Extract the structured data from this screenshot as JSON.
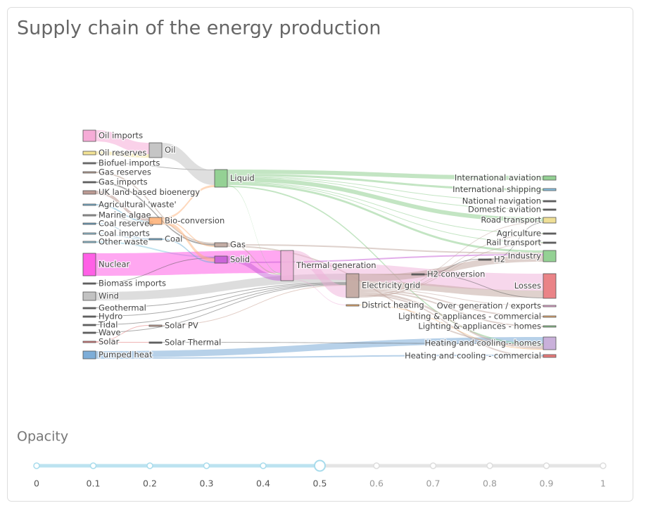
{
  "chart_data": {
    "type": "sankey",
    "title": "Supply chain of the energy production",
    "nodes": [
      {
        "label": "Oil imports",
        "color": "#f5a3d3"
      },
      {
        "label": "Oil reserves",
        "color": "#f2e08a"
      },
      {
        "label": "Biofuel imports",
        "color": "#666666"
      },
      {
        "label": "Gas reserves",
        "color": "#b5998a"
      },
      {
        "label": "Gas imports",
        "color": "#555555"
      },
      {
        "label": "UK land based bioenergy",
        "color": "#b58f87"
      },
      {
        "label": "Agricultural 'waste'",
        "color": "#6cb4d8"
      },
      {
        "label": "Marine algae",
        "color": "#999999"
      },
      {
        "label": "Coal reserves",
        "color": "#5e9fc4"
      },
      {
        "label": "Coal imports",
        "color": "#8fc4de"
      },
      {
        "label": "Other waste",
        "color": "#83c7df"
      },
      {
        "label": "Nuclear",
        "color": "#ff4fe3"
      },
      {
        "label": "Biomass imports",
        "color": "#555555"
      },
      {
        "label": "Wind",
        "color": "#bbbbbb"
      },
      {
        "label": "Geothermal",
        "color": "#555555"
      },
      {
        "label": "Hydro",
        "color": "#555555"
      },
      {
        "label": "Tidal",
        "color": "#555555"
      },
      {
        "label": "Wave",
        "color": "#555555"
      },
      {
        "label": "Solar",
        "color": "#e06b6b"
      },
      {
        "label": "Pumped heat",
        "color": "#6fa4d4"
      },
      {
        "label": "Oil",
        "color": "#bfbfbf"
      },
      {
        "label": "Bio-conversion",
        "color": "#fdb27a"
      },
      {
        "label": "Coal",
        "color": "#6aaed6"
      },
      {
        "label": "Solar PV",
        "color": "#c49a8a"
      },
      {
        "label": "Solar Thermal",
        "color": "#555555"
      },
      {
        "label": "Liquid",
        "color": "#88cc88"
      },
      {
        "label": "Gas",
        "color": "#bda39a"
      },
      {
        "label": "Solid",
        "color": "#c55ed6"
      },
      {
        "label": "Thermal generation",
        "color": "#f0b0da"
      },
      {
        "label": "Electricity grid",
        "color": "#c0a49c"
      },
      {
        "label": "District heating",
        "color": "#f6a95c"
      },
      {
        "label": "H2 conversion",
        "color": "#555555"
      },
      {
        "label": "International aviation",
        "color": "#88cc88"
      },
      {
        "label": "International shipping",
        "color": "#7bb9dd"
      },
      {
        "label": "National navigation",
        "color": "#555555"
      },
      {
        "label": "Domestic aviation",
        "color": "#555555"
      },
      {
        "label": "Road transport",
        "color": "#eddc8b"
      },
      {
        "label": "Agriculture",
        "color": "#555555"
      },
      {
        "label": "Rail transport",
        "color": "#555555"
      },
      {
        "label": "H2",
        "color": "#555555"
      },
      {
        "label": "Industry",
        "color": "#88cc88"
      },
      {
        "label": "Losses",
        "color": "#e8767a"
      },
      {
        "label": "Over generation / exports",
        "color": "#f4a0d6"
      },
      {
        "label": "Lighting & appliances - commercial",
        "color": "#f3a862"
      },
      {
        "label": "Lighting & appliances - homes",
        "color": "#7fc47f"
      },
      {
        "label": "Heating and cooling - homes",
        "color": "#c3a7d6"
      },
      {
        "label": "Heating and cooling - commercial",
        "color": "#e66b6b"
      }
    ],
    "links": [
      {
        "source": 0,
        "target": 20,
        "value": 16
      },
      {
        "source": 1,
        "target": 20,
        "value": 5
      },
      {
        "source": 2,
        "target": 25,
        "value": 1
      },
      {
        "source": 3,
        "target": 26,
        "value": 2
      },
      {
        "source": 4,
        "target": 26,
        "value": 2
      },
      {
        "source": 5,
        "target": 21,
        "value": 5
      },
      {
        "source": 6,
        "target": 21,
        "value": 2
      },
      {
        "source": 7,
        "target": 21,
        "value": 1
      },
      {
        "source": 8,
        "target": 22,
        "value": 1
      },
      {
        "source": 9,
        "target": 22,
        "value": 1
      },
      {
        "source": 10,
        "target": 27,
        "value": 2
      },
      {
        "source": 11,
        "target": 28,
        "value": 32
      },
      {
        "source": 12,
        "target": 27,
        "value": 1
      },
      {
        "source": 13,
        "target": 29,
        "value": 12
      },
      {
        "source": 14,
        "target": 29,
        "value": 1
      },
      {
        "source": 15,
        "target": 29,
        "value": 1
      },
      {
        "source": 16,
        "target": 29,
        "value": 1
      },
      {
        "source": 17,
        "target": 29,
        "value": 1
      },
      {
        "source": 18,
        "target": 23,
        "value": 1
      },
      {
        "source": 18,
        "target": 24,
        "value": 1
      },
      {
        "source": 19,
        "target": 45,
        "value": 9
      },
      {
        "source": 19,
        "target": 46,
        "value": 2
      },
      {
        "source": 20,
        "target": 25,
        "value": 21
      },
      {
        "source": 21,
        "target": 25,
        "value": 3
      },
      {
        "source": 21,
        "target": 26,
        "value": 2
      },
      {
        "source": 21,
        "target": 27,
        "value": 5
      },
      {
        "source": 22,
        "target": 27,
        "value": 2
      },
      {
        "source": 23,
        "target": 29,
        "value": 1
      },
      {
        "source": 24,
        "target": 45,
        "value": 1
      },
      {
        "source": 25,
        "target": 32,
        "value": 6
      },
      {
        "source": 25,
        "target": 33,
        "value": 3
      },
      {
        "source": 25,
        "target": 34,
        "value": 1
      },
      {
        "source": 25,
        "target": 35,
        "value": 1
      },
      {
        "source": 25,
        "target": 36,
        "value": 6
      },
      {
        "source": 25,
        "target": 37,
        "value": 1
      },
      {
        "source": 25,
        "target": 38,
        "value": 1
      },
      {
        "source": 25,
        "target": 40,
        "value": 3
      },
      {
        "source": 25,
        "target": 28,
        "value": 1
      },
      {
        "source": 25,
        "target": 45,
        "value": 2
      },
      {
        "source": 26,
        "target": 28,
        "value": 2
      },
      {
        "source": 26,
        "target": 40,
        "value": 2
      },
      {
        "source": 26,
        "target": 45,
        "value": 2
      },
      {
        "source": 27,
        "target": 28,
        "value": 8
      },
      {
        "source": 27,
        "target": 40,
        "value": 2
      },
      {
        "source": 28,
        "target": 29,
        "value": 17
      },
      {
        "source": 28,
        "target": 41,
        "value": 24
      },
      {
        "source": 28,
        "target": 30,
        "value": 1
      },
      {
        "source": 29,
        "target": 31,
        "value": 2
      },
      {
        "source": 29,
        "target": 40,
        "value": 9
      },
      {
        "source": 29,
        "target": 41,
        "value": 10
      },
      {
        "source": 29,
        "target": 42,
        "value": 1
      },
      {
        "source": 29,
        "target": 43,
        "value": 2
      },
      {
        "source": 29,
        "target": 44,
        "value": 2
      },
      {
        "source": 29,
        "target": 45,
        "value": 3
      },
      {
        "source": 29,
        "target": 46,
        "value": 2
      },
      {
        "source": 29,
        "target": 36,
        "value": 1
      },
      {
        "source": 29,
        "target": 38,
        "value": 1
      },
      {
        "source": 29,
        "target": 37,
        "value": 1
      },
      {
        "source": 31,
        "target": 39,
        "value": 1
      },
      {
        "source": 31,
        "target": 41,
        "value": 1
      },
      {
        "source": 39,
        "target": 36,
        "value": 1
      },
      {
        "source": 30,
        "target": 45,
        "value": 1
      }
    ]
  },
  "slider": {
    "label": "Opacity",
    "ticks": [
      0,
      0.1,
      0.2,
      0.3,
      0.4,
      0.5,
      0.6,
      0.7,
      0.8,
      0.9,
      1
    ],
    "value": 0.5
  }
}
